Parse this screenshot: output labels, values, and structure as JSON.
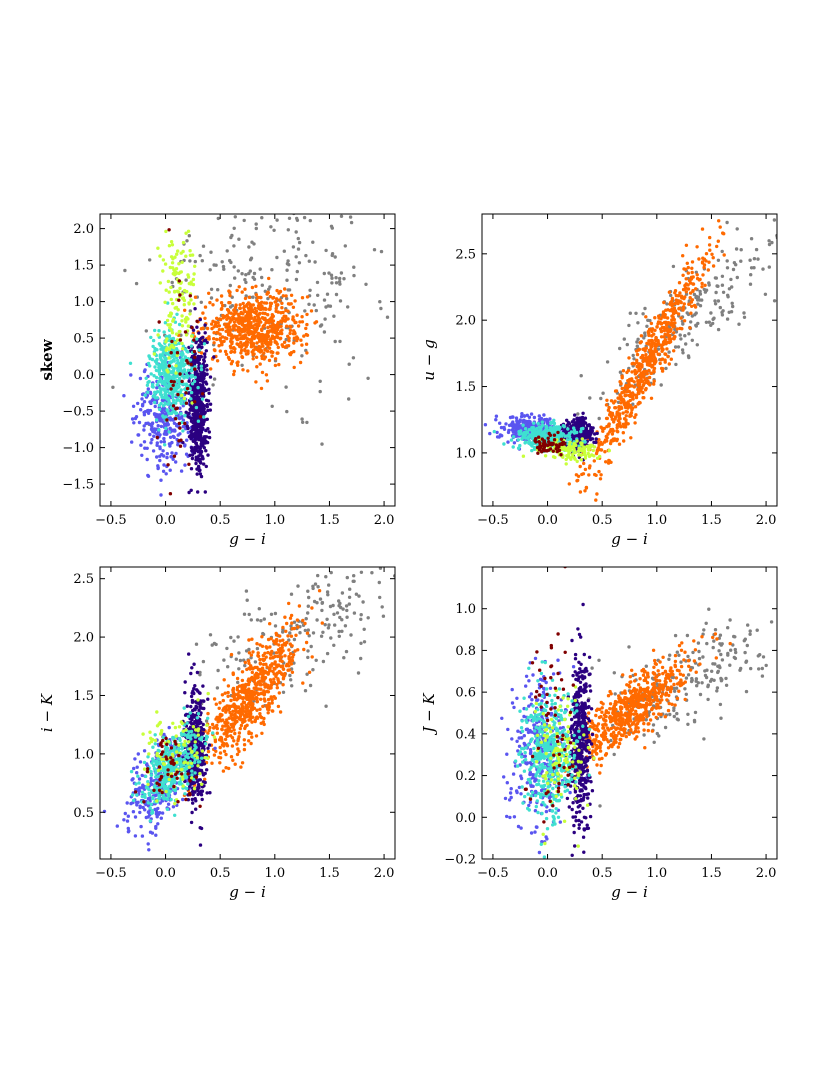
{
  "colors": {
    "gray": "#808080",
    "orange": "#ff6a00",
    "indigo": "#2b0080",
    "blue": "#5a55f0",
    "cyan": "#3fe0d0",
    "lime": "#c8ff3a",
    "darkred": "#800000"
  },
  "chart_data": [
    {
      "type": "scatter",
      "xlabel": "g − i",
      "ylabel": "skew",
      "xlim": [
        -0.6,
        2.1
      ],
      "ylim": [
        -1.8,
        2.2
      ],
      "xticks": [
        "−0.5",
        "0.0",
        "0.5",
        "1.0",
        "1.5",
        "2.0"
      ],
      "xtick_values": [
        -0.5,
        0.0,
        0.5,
        1.0,
        1.5,
        2.0
      ],
      "yticks": [
        "−1.5",
        "−1.0",
        "−0.5",
        "0.0",
        "0.5",
        "1.0",
        "1.5",
        "2.0"
      ],
      "ytick_values": [
        -1.5,
        -1.0,
        -0.5,
        0.0,
        0.5,
        1.0,
        1.5,
        2.0
      ],
      "grid": false,
      "groups": [
        {
          "color": "gray",
          "n": 260,
          "cx": 0.95,
          "cy": 1.25,
          "sx": 0.55,
          "sy": 0.7,
          "corr": 0
        },
        {
          "color": "orange",
          "n": 650,
          "cx": 0.82,
          "cy": 0.65,
          "sx": 0.22,
          "sy": 0.25,
          "corr": 0
        },
        {
          "color": "blue",
          "n": 320,
          "cx": 0.0,
          "cy": -0.6,
          "sx": 0.14,
          "sy": 0.35,
          "corr": 0
        },
        {
          "color": "indigo",
          "n": 520,
          "cx": 0.3,
          "cy": -0.4,
          "sx": 0.045,
          "sy": 0.45,
          "corr": 0
        },
        {
          "color": "cyan",
          "n": 420,
          "cx": 0.05,
          "cy": 0.0,
          "sx": 0.1,
          "sy": 0.3,
          "corr": 0
        },
        {
          "color": "lime",
          "n": 140,
          "cx": 0.12,
          "cy": 1.05,
          "sx": 0.08,
          "sy": 0.55,
          "corr": 0
        },
        {
          "color": "darkred",
          "n": 50,
          "cx": 0.1,
          "cy": -0.2,
          "sx": 0.1,
          "sy": 0.7,
          "corr": 0
        }
      ]
    },
    {
      "type": "scatter",
      "xlabel": "g − i",
      "ylabel": "u − g",
      "xlim": [
        -0.6,
        2.1
      ],
      "ylim": [
        0.6,
        2.8
      ],
      "xticks": [
        "−0.5",
        "0.0",
        "0.5",
        "1.0",
        "1.5",
        "2.0"
      ],
      "xtick_values": [
        -0.5,
        0.0,
        0.5,
        1.0,
        1.5,
        2.0
      ],
      "yticks": [
        "1.0",
        "1.5",
        "2.0",
        "2.5"
      ],
      "ytick_values": [
        1.0,
        1.5,
        2.0,
        2.5
      ],
      "grid": false,
      "groups": [
        {
          "color": "gray",
          "n": 230,
          "cx": 1.35,
          "cy": 2.05,
          "sx": 0.45,
          "sy": 0.35,
          "corr": 0.85
        },
        {
          "color": "orange",
          "n": 650,
          "cx": 0.9,
          "cy": 1.65,
          "sx": 0.28,
          "sy": 0.42,
          "corr": 0.96
        },
        {
          "color": "blue",
          "n": 300,
          "cx": -0.15,
          "cy": 1.17,
          "sx": 0.14,
          "sy": 0.05,
          "corr": 0
        },
        {
          "color": "indigo",
          "n": 380,
          "cx": 0.28,
          "cy": 1.15,
          "sx": 0.06,
          "sy": 0.06,
          "corr": 0
        },
        {
          "color": "cyan",
          "n": 300,
          "cx": 0.0,
          "cy": 1.12,
          "sx": 0.14,
          "sy": 0.05,
          "corr": 0
        },
        {
          "color": "lime",
          "n": 130,
          "cx": 0.18,
          "cy": 1.02,
          "sx": 0.14,
          "sy": 0.04,
          "corr": 0
        },
        {
          "color": "darkred",
          "n": 60,
          "cx": 0.0,
          "cy": 1.06,
          "sx": 0.08,
          "sy": 0.04,
          "corr": 0
        }
      ]
    },
    {
      "type": "scatter",
      "xlabel": "g − i",
      "ylabel": "i − K",
      "xlim": [
        -0.6,
        2.1
      ],
      "ylim": [
        0.1,
        2.6
      ],
      "xticks": [
        "−0.5",
        "0.0",
        "0.5",
        "1.0",
        "1.5",
        "2.0"
      ],
      "xtick_values": [
        -0.5,
        0.0,
        0.5,
        1.0,
        1.5,
        2.0
      ],
      "yticks": [
        "0.5",
        "1.0",
        "1.5",
        "2.0",
        "2.5"
      ],
      "ytick_values": [
        0.5,
        1.0,
        1.5,
        2.0,
        2.5
      ],
      "grid": false,
      "groups": [
        {
          "color": "gray",
          "n": 220,
          "cx": 1.25,
          "cy": 2.05,
          "sx": 0.5,
          "sy": 0.32,
          "corr": 0.6
        },
        {
          "color": "orange",
          "n": 650,
          "cx": 0.78,
          "cy": 1.5,
          "sx": 0.24,
          "sy": 0.3,
          "corr": 0.8
        },
        {
          "color": "blue",
          "n": 300,
          "cx": -0.05,
          "cy": 0.75,
          "sx": 0.15,
          "sy": 0.2,
          "corr": 0.5
        },
        {
          "color": "indigo",
          "n": 420,
          "cx": 0.27,
          "cy": 1.05,
          "sx": 0.05,
          "sy": 0.25,
          "corr": 0
        },
        {
          "color": "cyan",
          "n": 380,
          "cx": 0.05,
          "cy": 0.88,
          "sx": 0.13,
          "sy": 0.17,
          "corr": 0.5
        },
        {
          "color": "lime",
          "n": 100,
          "cx": 0.1,
          "cy": 1.0,
          "sx": 0.15,
          "sy": 0.2,
          "corr": 0
        },
        {
          "color": "darkred",
          "n": 50,
          "cx": 0.05,
          "cy": 0.85,
          "sx": 0.1,
          "sy": 0.15,
          "corr": 0
        }
      ]
    },
    {
      "type": "scatter",
      "xlabel": "g − i",
      "ylabel": "J − K",
      "xlim": [
        -0.6,
        2.1
      ],
      "ylim": [
        -0.2,
        1.2
      ],
      "xticks": [
        "−0.5",
        "0.0",
        "0.5",
        "1.0",
        "1.5",
        "2.0"
      ],
      "xtick_values": [
        -0.5,
        0.0,
        0.5,
        1.0,
        1.5,
        2.0
      ],
      "yticks": [
        "−0.2",
        "0.0",
        "0.2",
        "0.4",
        "0.6",
        "0.8",
        "1.0"
      ],
      "ytick_values": [
        -0.2,
        0.0,
        0.2,
        0.4,
        0.6,
        0.8,
        1.0
      ],
      "grid": false,
      "groups": [
        {
          "color": "gray",
          "n": 220,
          "cx": 1.3,
          "cy": 0.65,
          "sx": 0.45,
          "sy": 0.17,
          "corr": 0.7
        },
        {
          "color": "orange",
          "n": 650,
          "cx": 0.78,
          "cy": 0.52,
          "sx": 0.25,
          "sy": 0.12,
          "corr": 0.8
        },
        {
          "color": "blue",
          "n": 320,
          "cx": -0.08,
          "cy": 0.32,
          "sx": 0.13,
          "sy": 0.18,
          "corr": 0
        },
        {
          "color": "indigo",
          "n": 450,
          "cx": 0.3,
          "cy": 0.35,
          "sx": 0.05,
          "sy": 0.2,
          "corr": 0
        },
        {
          "color": "cyan",
          "n": 420,
          "cx": 0.0,
          "cy": 0.3,
          "sx": 0.12,
          "sy": 0.15,
          "corr": 0
        },
        {
          "color": "lime",
          "n": 110,
          "cx": 0.1,
          "cy": 0.3,
          "sx": 0.12,
          "sy": 0.15,
          "corr": 0
        },
        {
          "color": "darkred",
          "n": 60,
          "cx": 0.05,
          "cy": 0.45,
          "sx": 0.12,
          "sy": 0.25,
          "corr": 0
        }
      ]
    }
  ]
}
